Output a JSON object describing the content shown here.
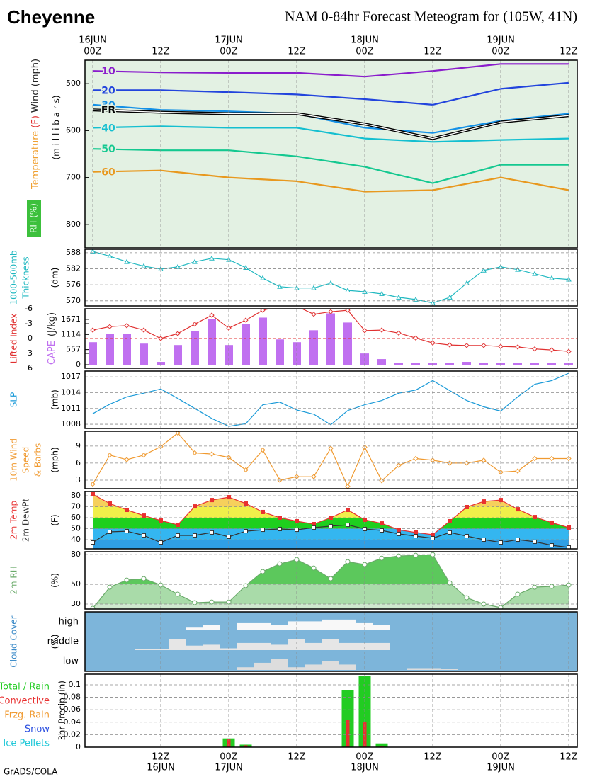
{
  "header": {
    "location": "Cheyenne",
    "title": "NAM 0-84hr Forecast Meteogram for (105W, 41N)"
  },
  "footer": "GrADS/COLA",
  "chart_data": [
    {
      "type": "contour",
      "background": "#e3f1e3",
      "ylabel": [
        "Temperature",
        "(F)",
        "Wind (mph)"
      ],
      "label_colors": [
        "#f0a030",
        "#e03030",
        "#222222"
      ],
      "yunit": "(m i l l i b a r s)",
      "rh_label": "RH (%)",
      "grid": false,
      "x": [
        0,
        12,
        24,
        36,
        48,
        60,
        72,
        84
      ],
      "xlim": [
        -1.375,
        85.5
      ],
      "xticks": [
        {
          "value": 0,
          "label": "00Z"
        },
        {
          "value": 12,
          "label": "12Z"
        },
        {
          "value": 24,
          "label": "00Z"
        },
        {
          "value": 36,
          "label": "12Z"
        },
        {
          "value": 48,
          "label": "00Z"
        },
        {
          "value": 60,
          "label": "12Z"
        },
        {
          "value": 72,
          "label": "00Z"
        },
        {
          "value": 84,
          "label": "12Z"
        }
      ],
      "xdates": [
        {
          "value": 0,
          "label": "16JUN"
        },
        {
          "value": 24,
          "label": "17JUN"
        },
        {
          "value": 48,
          "label": "18JUN"
        },
        {
          "value": 72,
          "label": "19JUN"
        }
      ],
      "xaxis_side": "top",
      "ylim": [
        850,
        450
      ],
      "yticks": [
        500,
        600,
        700,
        800
      ],
      "series": [
        {
          "name": "10",
          "color": "#8a1ccc",
          "values": [
            473,
            476,
            477,
            477,
            485,
            473,
            458,
            458
          ]
        },
        {
          "name": "20",
          "color": "#2244dd",
          "values": [
            514,
            514,
            518,
            523,
            533,
            545,
            511,
            498
          ]
        },
        {
          "name": "30",
          "color": "#1490e6",
          "values": [
            545,
            556,
            559,
            564,
            594,
            605,
            579,
            564
          ]
        },
        {
          "name": "FR",
          "color": "#000000",
          "values": [
            556,
            561,
            564,
            564,
            586,
            617,
            582,
            568
          ]
        },
        {
          "name": "40",
          "color": "#14bfd0",
          "values": [
            594,
            591,
            594,
            594,
            617,
            624,
            620,
            617
          ]
        },
        {
          "name": "50",
          "color": "#14c890",
          "values": [
            639,
            642,
            642,
            655,
            677,
            712,
            673,
            673
          ]
        },
        {
          "name": "60",
          "color": "#e8981e",
          "values": [
            688,
            685,
            700,
            708,
            730,
            727,
            700,
            727
          ]
        }
      ]
    },
    {
      "type": "line",
      "ylabel": [
        "1000-500mb",
        "Thickness"
      ],
      "label_color": "#20b8c0",
      "yunit": "(dm)",
      "grid": true,
      "x": [
        0,
        3,
        6,
        9,
        12,
        15,
        18,
        21,
        24,
        27,
        30,
        33,
        36,
        39,
        42,
        45,
        48,
        51,
        54,
        57,
        60,
        63,
        66,
        69,
        72,
        75,
        78,
        81,
        84
      ],
      "xlim": [
        -1.375,
        85.5
      ],
      "xticks": [
        12,
        24,
        36,
        48,
        60,
        72,
        84
      ],
      "ylim": [
        568.1,
        589.3
      ],
      "yticks": [
        570,
        576,
        582,
        588
      ],
      "series": [
        {
          "name": "Thickness",
          "color": "#20b8c0",
          "marker": "triangle",
          "values": [
            588.5,
            586.7,
            584.6,
            583.0,
            581.9,
            582.7,
            584.6,
            585.9,
            585.4,
            582.4,
            578.5,
            575.3,
            574.8,
            574.8,
            576.6,
            573.9,
            573.4,
            572.6,
            571.3,
            570.5,
            569.2,
            571.3,
            576.6,
            581.4,
            582.7,
            581.7,
            580.1,
            578.5,
            578.0
          ]
        }
      ]
    },
    {
      "type": "combo",
      "ylabel": [
        "Lifted Index"
      ],
      "label_color": "#e03030",
      "y2label": [
        "CAPE",
        "(J/kg)"
      ],
      "y2label_colors": [
        "#c070f0",
        "#222222"
      ],
      "grid": false,
      "x": [
        0,
        3,
        6,
        9,
        12,
        15,
        18,
        21,
        24,
        27,
        30,
        33,
        36,
        39,
        42,
        45,
        48,
        51,
        54,
        57,
        60,
        63,
        66,
        69,
        72,
        75,
        78,
        81,
        84
      ],
      "xlim": [
        -1.375,
        85.5
      ],
      "xticks": [
        12,
        24,
        36,
        48,
        60,
        72,
        84
      ],
      "ylim": [
        6,
        -6
      ],
      "yticks": [
        -6,
        -3,
        0,
        3,
        6
      ],
      "y2lim": [
        -130,
        2060
      ],
      "y2ticks": [
        0,
        557,
        1114,
        1671
      ],
      "series": [
        {
          "name": "CAPE",
          "color": "#c070f0",
          "axis": "y2",
          "values": [
            829,
            1140,
            1140,
            777,
            104,
            725,
            1243,
            1684,
            725,
            1502,
            1735,
            932,
            829,
            1269,
            1891,
            1554,
            414,
            207,
            78,
            52,
            52,
            78,
            104,
            78,
            78,
            52,
            52,
            52,
            52
          ]
        },
        {
          "name": "Lifted Index",
          "color": "#e03030",
          "marker": "diamond",
          "values": [
            -1.7,
            -2.4,
            -2.6,
            -1.7,
            0,
            -1,
            -2.9,
            -4.7,
            -2.1,
            -3.7,
            -5.7,
            -6.5,
            -6.5,
            -4.9,
            -5.4,
            -5.7,
            -1.6,
            -1.7,
            -1.1,
            -0.1,
            0.9,
            1.3,
            1.4,
            1.4,
            1.6,
            1.7,
            2.1,
            2.3,
            2.6
          ]
        }
      ]
    },
    {
      "type": "line",
      "ylabel": [
        "SLP"
      ],
      "label_color": "#1a9ad8",
      "yunit": "(mb)",
      "grid": true,
      "x": [
        0,
        3,
        6,
        9,
        12,
        15,
        18,
        21,
        24,
        27,
        30,
        33,
        36,
        39,
        42,
        45,
        48,
        51,
        54,
        57,
        60,
        63,
        66,
        69,
        72,
        75,
        78,
        81,
        84
      ],
      "xlim": [
        -1.375,
        85.5
      ],
      "xticks": [
        12,
        24,
        36,
        48,
        60,
        72,
        84
      ],
      "ylim": [
        1007.2,
        1018.1
      ],
      "yticks": [
        1008,
        1011,
        1014,
        1017
      ],
      "series": [
        {
          "name": "SLP",
          "color": "#1a9ad8",
          "values": [
            1010.0,
            1011.8,
            1013.2,
            1013.9,
            1014.7,
            1012.9,
            1011.0,
            1009.1,
            1007.6,
            1008.1,
            1011.7,
            1012.2,
            1010.7,
            1009.9,
            1007.9,
            1010.6,
            1011.7,
            1012.5,
            1013.9,
            1014.5,
            1016.3,
            1014.4,
            1012.5,
            1011.3,
            1010.5,
            1013.2,
            1015.6,
            1016.3,
            1017.7
          ]
        }
      ]
    },
    {
      "type": "line",
      "ylabel": [
        "10m Wind",
        "Speed",
        "& Barbs"
      ],
      "label_color": "#f09a30",
      "yunit": "(mph)",
      "grid": true,
      "x": [
        0,
        3,
        6,
        9,
        12,
        15,
        18,
        21,
        24,
        27,
        30,
        33,
        36,
        39,
        42,
        45,
        48,
        51,
        54,
        57,
        60,
        63,
        66,
        69,
        72,
        75,
        78,
        81,
        84
      ],
      "xlim": [
        -1.375,
        85.5
      ],
      "xticks": [
        12,
        24,
        36,
        48,
        60,
        72,
        84
      ],
      "ylim": [
        1.5,
        11.6
      ],
      "yticks": [
        3,
        6,
        9
      ],
      "series": [
        {
          "name": "10m Wind",
          "color": "#f09a30",
          "marker": "diamond",
          "values": [
            2.3,
            7.4,
            6.6,
            7.4,
            8.9,
            11.3,
            7.8,
            7.6,
            7.0,
            4.8,
            8.3,
            3.0,
            3.6,
            3.6,
            8.6,
            1.9,
            8.8,
            2.9,
            5.6,
            6.8,
            6.5,
            6.0,
            6.0,
            6.5,
            4.4,
            4.6,
            6.8,
            6.8,
            6.8
          ]
        }
      ]
    },
    {
      "type": "area",
      "yunit": "(F)",
      "grid": true,
      "band_colors": [
        "#2f9fe6",
        "#34b6f0",
        "#1ecf1e",
        "#f0ef4a",
        "#f6d05c",
        "#f4a07a"
      ],
      "x": [
        0,
        3,
        6,
        9,
        12,
        15,
        18,
        21,
        24,
        27,
        30,
        33,
        36,
        39,
        42,
        45,
        48,
        51,
        54,
        57,
        60,
        63,
        66,
        69,
        72,
        75,
        78,
        81,
        84
      ],
      "xlim": [
        -1.375,
        85.5
      ],
      "xticks": [
        12,
        24,
        36,
        48,
        60,
        72,
        84
      ],
      "ylim": [
        31.6,
        83.9
      ],
      "yticks": [
        40,
        50,
        60,
        70,
        80
      ],
      "series": [
        {
          "name": "2m Temp",
          "color": "#e83030",
          "marker": "square",
          "marker_fill": "#e83030",
          "values": [
            81.3,
            72.9,
            67.1,
            61.9,
            57.4,
            53.5,
            70.3,
            76.1,
            78.7,
            72.9,
            65.2,
            60.0,
            56.8,
            54.2,
            60.0,
            67.1,
            58.1,
            54.8,
            49.0,
            46.5,
            44.5,
            56.8,
            69.7,
            74.8,
            76.1,
            67.7,
            60.6,
            55.5,
            51.0
          ]
        },
        {
          "name": "2m DewPt",
          "color": "#333333",
          "marker": "square",
          "marker_fill": "#ffffff",
          "values": [
            37.4,
            47.1,
            47.7,
            43.9,
            37.4,
            43.9,
            43.9,
            46.5,
            42.6,
            47.7,
            49.0,
            49.7,
            49.0,
            51.0,
            52.3,
            53.5,
            49.7,
            48.4,
            45.2,
            43.2,
            41.3,
            46.5,
            43.2,
            40.0,
            37.4,
            40.0,
            38.1,
            34.8,
            32.9
          ]
        }
      ]
    },
    {
      "type": "area",
      "yunit": "(%)",
      "grid": true,
      "band_colors": [
        "#cfe8cf",
        "#a9dba9",
        "#5cc85c",
        "#1bb81b"
      ],
      "x": [
        0,
        3,
        6,
        9,
        12,
        15,
        18,
        21,
        24,
        27,
        30,
        33,
        36,
        39,
        42,
        45,
        48,
        51,
        54,
        57,
        60,
        63,
        66,
        69,
        72,
        75,
        78,
        81,
        84
      ],
      "xlim": [
        -1.375,
        85.5
      ],
      "xticks": [
        12,
        24,
        36,
        48,
        60,
        72,
        84
      ],
      "ylim": [
        25,
        83
      ],
      "yticks": [
        30,
        50,
        80
      ],
      "series": [
        {
          "name": "2m RH",
          "color": "#6aaa6a",
          "marker": "circle",
          "marker_fill": "#ffffff",
          "values": [
            25.7,
            47.1,
            54.3,
            55.7,
            49.3,
            40,
            31.4,
            32.1,
            32.1,
            48.6,
            62.9,
            70.7,
            75,
            66.4,
            55.7,
            72.9,
            70,
            76.4,
            78.6,
            79.3,
            80,
            51.4,
            36.4,
            30,
            26.4,
            40,
            47.1,
            47.9,
            49.3
          ]
        }
      ]
    },
    {
      "type": "cloud",
      "background": "#7db5da",
      "ylabel": [
        "Cloud Cover"
      ],
      "label_color": "#3a8ac8",
      "yunit": "(%)",
      "x": [
        0,
        3,
        6,
        9,
        12,
        15,
        18,
        21,
        24,
        27,
        30,
        33,
        36,
        39,
        42,
        45,
        48,
        51,
        54,
        57,
        60,
        63,
        66,
        69,
        72,
        75,
        78,
        81,
        84
      ],
      "xlim": [
        -1.375,
        85.5
      ],
      "xticks": [
        12,
        24,
        36,
        48,
        60,
        72,
        84
      ],
      "series": [
        {
          "name": "high",
          "color": "#f8f8f8",
          "values": [
            0,
            0,
            0,
            0,
            0,
            0,
            15,
            30,
            0,
            40,
            40,
            30,
            50,
            50,
            60,
            60,
            40,
            30,
            0,
            0,
            0,
            0,
            0,
            0,
            0,
            0,
            0,
            0,
            0
          ]
        },
        {
          "name": "middle",
          "color": "#e6e6e6",
          "values": [
            0,
            0,
            0,
            5,
            5,
            60,
            25,
            30,
            10,
            40,
            40,
            30,
            60,
            40,
            60,
            40,
            40,
            40,
            0,
            0,
            0,
            0,
            0,
            0,
            0,
            0,
            0,
            0,
            0
          ]
        },
        {
          "name": "low",
          "color": "#dddddd",
          "values": [
            0,
            0,
            0,
            0,
            0,
            0,
            0,
            0,
            0,
            15,
            40,
            60,
            15,
            30,
            50,
            30,
            0,
            0,
            0,
            10,
            10,
            5,
            0,
            0,
            0,
            0,
            0,
            0,
            0
          ]
        }
      ]
    },
    {
      "type": "bar",
      "yunit": "3hr Precip (in)",
      "grid": true,
      "x": [
        24,
        27,
        45,
        48,
        51
      ],
      "xlim": [
        -1.375,
        85.5
      ],
      "xticks": [
        {
          "value": 12,
          "label": "12Z"
        },
        {
          "value": 24,
          "label": "00Z"
        },
        {
          "value": 36,
          "label": "12Z"
        },
        {
          "value": 48,
          "label": "00Z"
        },
        {
          "value": 60,
          "label": "12Z"
        },
        {
          "value": 72,
          "label": "00Z"
        },
        {
          "value": 84,
          "label": "12Z"
        }
      ],
      "xdates": [
        {
          "value": 12,
          "label": "16JUN"
        },
        {
          "value": 24,
          "label": "17JUN"
        },
        {
          "value": 48,
          "label": "18JUN"
        },
        {
          "value": 72,
          "label": "19JUN"
        }
      ],
      "xaxis_side": "bottom",
      "ylim": [
        0,
        0.117
      ],
      "yticks": [
        0,
        0.02,
        0.04,
        0.06,
        0.08,
        0.1
      ],
      "series": [
        {
          "name": "Total / Rain",
          "color": "#22cc22",
          "values": [
            0.014,
            0.004,
            0.092,
            0.114,
            0.006
          ]
        },
        {
          "name": "Convective",
          "color": "#e83030",
          "values": [
            0.013,
            0.003,
            0.044,
            0.04,
            0.002
          ]
        },
        {
          "name": "Frzg. Rain",
          "color": "#f09a30",
          "values": [
            0,
            0,
            0,
            0,
            0
          ]
        },
        {
          "name": "Snow",
          "color": "#2b4fe0",
          "values": [
            0,
            0,
            0,
            0,
            0
          ]
        },
        {
          "name": "Ice Pellets",
          "color": "#20c8d8",
          "values": [
            0,
            0,
            0,
            0,
            0
          ]
        }
      ]
    }
  ]
}
